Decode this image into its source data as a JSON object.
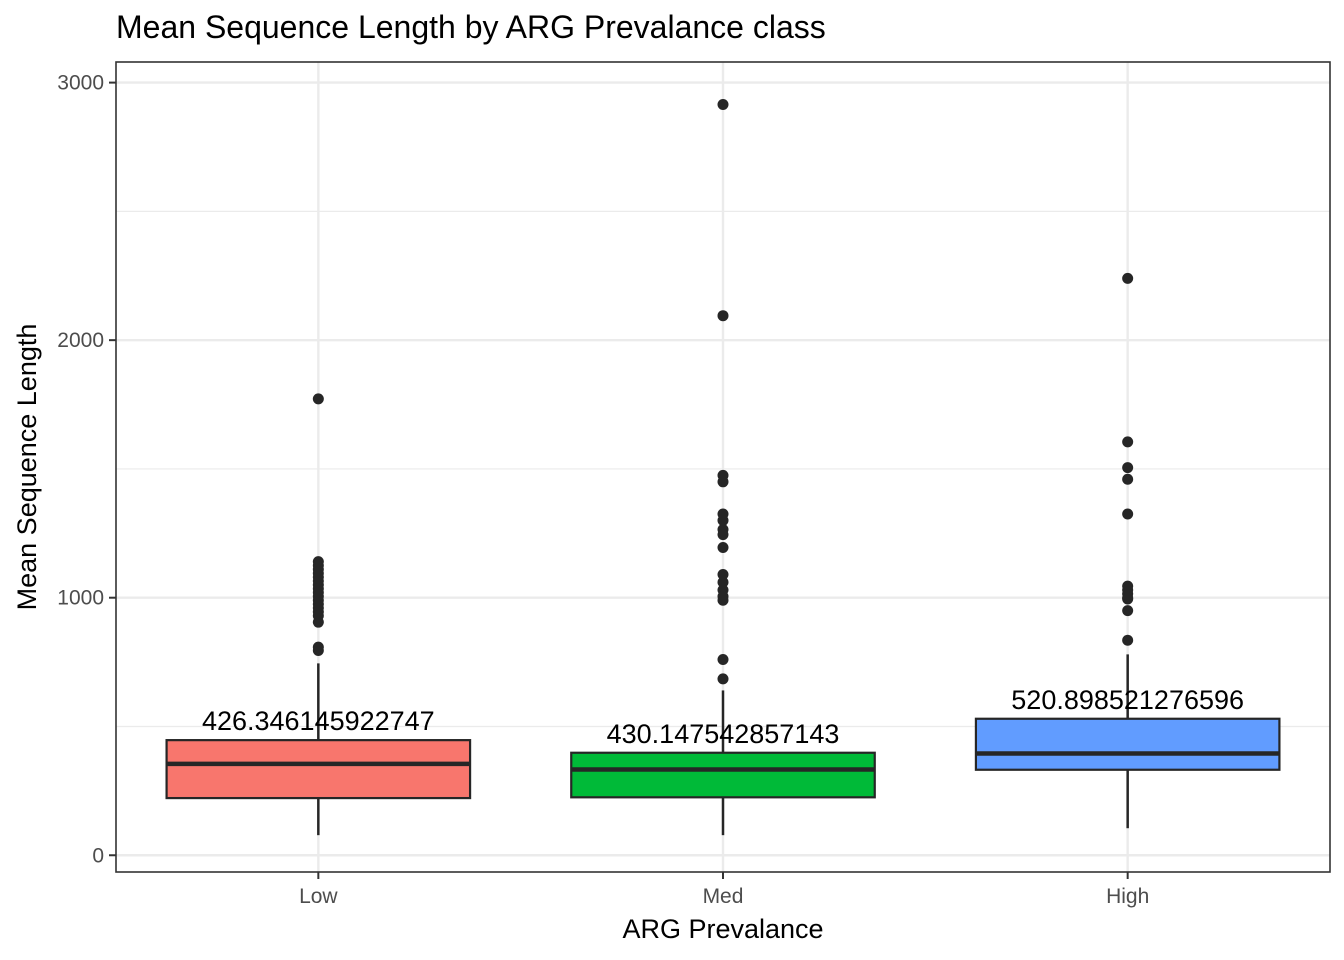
{
  "chart_data": {
    "type": "box",
    "title": "Mean Sequence Length by ARG Prevalance class",
    "xlabel": "ARG Prevalance",
    "ylabel": "Mean Sequence Length",
    "ylim": [
      -65,
      3080
    ],
    "yticks": [
      0,
      1000,
      2000,
      3000
    ],
    "grid": true,
    "legend": "none",
    "categories": [
      "Low",
      "Med",
      "High"
    ],
    "boxes": [
      {
        "category": "Low",
        "color": "#F8766D",
        "whisker_low": 78,
        "q1": 222,
        "median": 355,
        "q3": 447,
        "whisker_high": 745,
        "mean_label": "426.346145922747",
        "outliers": [
          1772,
          1140,
          1125,
          1110,
          1095,
          1080,
          1065,
          1050,
          1035,
          1020,
          1005,
          990,
          975,
          960,
          945,
          930,
          905,
          808,
          795
        ]
      },
      {
        "category": "Med",
        "color": "#00BA38",
        "whisker_low": 78,
        "q1": 225,
        "median": 333,
        "q3": 398,
        "whisker_high": 640,
        "mean_label": "430.147542857143",
        "outliers": [
          2915,
          2095,
          1475,
          1450,
          1325,
          1300,
          1265,
          1245,
          1195,
          1090,
          1060,
          1030,
          1005,
          990,
          760,
          685
        ]
      },
      {
        "category": "High",
        "color": "#619CFF",
        "whisker_low": 105,
        "q1": 332,
        "median": 395,
        "q3": 530,
        "whisker_high": 780,
        "mean_label": "520.898521276596",
        "outliers": [
          2240,
          1605,
          1505,
          1460,
          1325,
          1045,
          1030,
          1015,
          1000,
          995,
          950,
          835
        ]
      }
    ]
  }
}
